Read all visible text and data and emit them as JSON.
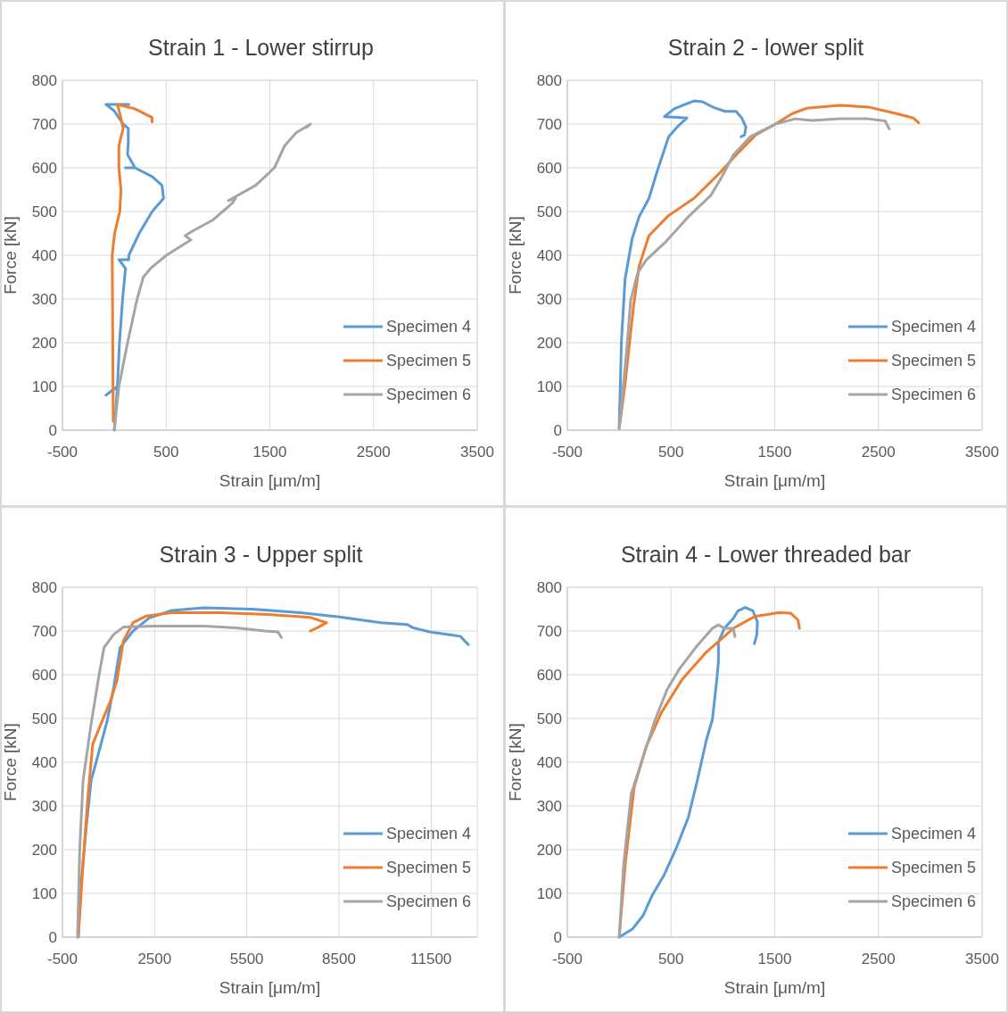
{
  "chart_data": [
    {
      "type": "line",
      "title": "Strain 1 - Lower stirrup",
      "xlabel": "Strain [μm/m]",
      "ylabel": "Force [kN]",
      "xlim": [
        -500,
        3500
      ],
      "xticks": [
        -500,
        500,
        1500,
        2500,
        3500
      ],
      "ylim": [
        0,
        800
      ],
      "yticks": [
        0,
        100,
        200,
        300,
        400,
        500,
        600,
        700,
        800
      ],
      "grid": true,
      "legend": "bottom right",
      "series": [
        {
          "name": "Specimen 4",
          "color": "#5b9bd5",
          "x": [
            0,
            30,
            -80,
            30,
            50,
            80,
            108,
            45,
            140,
            140,
            240,
            365,
            475,
            460,
            365,
            200,
            108,
            200,
            128,
            135,
            135,
            85,
            0,
            -80,
            140
          ],
          "values": [
            0,
            100,
            80,
            100,
            200,
            300,
            370,
            390,
            390,
            400,
            450,
            500,
            530,
            560,
            580,
            600,
            600,
            600,
            630,
            660,
            690,
            700,
            730,
            745,
            745
          ]
        },
        {
          "name": "Specimen 5",
          "color": "#ed7d31",
          "x": [
            -10,
            -20,
            3,
            53,
            64,
            44,
            44,
            86,
            58,
            30,
            197,
            364,
            364
          ],
          "values": [
            20,
            400,
            450,
            500,
            550,
            600,
            650,
            690,
            720,
            745,
            735,
            715,
            705
          ]
        },
        {
          "name": "Specimen 6",
          "color": "#a5a5a5",
          "x": [
            0,
            44,
            128,
            220,
            280,
            350,
            503,
            739,
            683,
            753,
            947,
            1142,
            1169,
            1100,
            1364,
            1544,
            1642,
            1753,
            1892,
            1850
          ],
          "values": [
            0,
            100,
            200,
            300,
            350,
            370,
            400,
            435,
            445,
            455,
            480,
            520,
            530,
            525,
            560,
            600,
            650,
            680,
            700,
            692
          ]
        }
      ]
    },
    {
      "type": "line",
      "title": "Strain 2 - lower split",
      "xlabel": "Strain [μm/m]",
      "ylabel": "Force [kN]",
      "xlim": [
        -500,
        3500
      ],
      "xticks": [
        -500,
        500,
        1500,
        2500,
        3500
      ],
      "ylim": [
        0,
        800
      ],
      "yticks": [
        0,
        100,
        200,
        300,
        400,
        500,
        600,
        700,
        800
      ],
      "grid": true,
      "legend": "bottom right",
      "series": [
        {
          "name": "Specimen 4",
          "color": "#5b9bd5",
          "x": [
            0,
            11,
            22,
            57,
            125,
            192,
            287,
            369,
            477,
            558,
            653,
            436,
            531,
            720,
            802,
            911,
            1019,
            1127,
            1182,
            1222,
            1209,
            1176
          ],
          "values": [
            7,
            106,
            205,
            346,
            438,
            488,
            530,
            594,
            671,
            693,
            714,
            717,
            735,
            753,
            751,
            738,
            729,
            729,
            714,
            693,
            675,
            671
          ]
        },
        {
          "name": "Specimen 5",
          "color": "#ed7d31",
          "x": [
            0,
            57,
            138,
            192,
            287,
            477,
            721,
            965,
            1154,
            1317,
            1507,
            1669,
            1805,
            2130,
            2401,
            2672,
            2835,
            2889
          ],
          "values": [
            4,
            106,
            283,
            375,
            445,
            491,
            530,
            587,
            636,
            675,
            700,
            724,
            736,
            743,
            739,
            724,
            714,
            703
          ]
        },
        {
          "name": "Specimen 6",
          "color": "#a5a5a5",
          "x": [
            0,
            70,
            111,
            179,
            260,
            450,
            667,
            884,
            992,
            1100,
            1263,
            1507,
            1696,
            1859,
            2130,
            2401,
            2564,
            2604
          ],
          "values": [
            4,
            177,
            297,
            360,
            389,
            431,
            488,
            537,
            580,
            629,
            671,
            700,
            712,
            708,
            712,
            712,
            707,
            689
          ]
        }
      ]
    },
    {
      "type": "line",
      "title": "Strain 3 - Upper split",
      "xlabel": "Strain [μm/m]",
      "ylabel": "Force [kN]",
      "xlim": [
        -500,
        13000
      ],
      "xticks": [
        -500,
        2500,
        5500,
        8500,
        11500
      ],
      "ylim": [
        0,
        800
      ],
      "yticks": [
        0,
        100,
        200,
        300,
        400,
        500,
        600,
        700,
        800
      ],
      "grid": true,
      "legend": "bottom right",
      "series": [
        {
          "name": "Specimen 4",
          "color": "#5b9bd5",
          "x": [
            13,
            118,
            275,
            433,
            695,
            958,
            1167,
            1377,
            1797,
            2322,
            3056,
            4105,
            5679,
            7253,
            8513,
            9877,
            10716,
            10926,
            11451,
            12448,
            12710
          ],
          "values": [
            0,
            130,
            252,
            358,
            426,
            495,
            571,
            662,
            700,
            730,
            747,
            753,
            750,
            742,
            732,
            719,
            715,
            707,
            698,
            688,
            669
          ]
        },
        {
          "name": "Specimen 5",
          "color": "#ed7d31",
          "x": [
            13,
            171,
            328,
            485,
            748,
            1063,
            1272,
            1377,
            1482,
            1797,
            2217,
            3056,
            4630,
            6204,
            7568,
            8093,
            7778,
            7568
          ],
          "values": [
            0,
            168,
            320,
            441,
            487,
            540,
            586,
            631,
            677,
            719,
            734,
            742,
            742,
            738,
            731,
            719,
            707,
            700
          ]
        },
        {
          "name": "Specimen 6",
          "color": "#a5a5a5",
          "x": [
            -8,
            65,
            171,
            433,
            695,
            853,
            1167,
            1482,
            2532,
            4105,
            5154,
            6099,
            6519,
            6624
          ],
          "values": [
            0,
            206,
            358,
            487,
            601,
            662,
            692,
            709,
            711,
            711,
            707,
            700,
            698,
            685
          ]
        }
      ]
    },
    {
      "type": "line",
      "title": "Strain 4 - Lower threaded bar",
      "xlabel": "Strain [μm/m]",
      "ylabel": "Force [kN]",
      "xlim": [
        -500,
        3500
      ],
      "xticks": [
        -500,
        500,
        1500,
        2500,
        3500
      ],
      "ylim": [
        0,
        800
      ],
      "yticks": [
        0,
        100,
        200,
        300,
        400,
        500,
        600,
        700,
        800
      ],
      "grid": true,
      "legend": "bottom right",
      "series": [
        {
          "name": "Specimen 4",
          "color": "#5b9bd5",
          "x": [
            0,
            130,
            232,
            319,
            435,
            551,
            667,
            754,
            841,
            899,
            942,
            957,
            957,
            1014,
            1101,
            1145,
            1217,
            1290,
            1333,
            1327,
            1304
          ],
          "values": [
            0,
            19,
            50,
            96,
            143,
            204,
            274,
            359,
            451,
            498,
            590,
            629,
            675,
            706,
            729,
            746,
            754,
            746,
            721,
            691,
            671
          ]
        },
        {
          "name": "Specimen 5",
          "color": "#ed7d31",
          "x": [
            0,
            58,
            145,
            261,
            406,
            609,
            841,
            1101,
            1304,
            1536,
            1652,
            1725,
            1739
          ],
          "values": [
            0,
            166,
            343,
            436,
            513,
            590,
            652,
            706,
            733,
            742,
            741,
            725,
            706
          ]
        },
        {
          "name": "Specimen 6",
          "color": "#a5a5a5",
          "x": [
            0,
            43,
            116,
            232,
            348,
            464,
            580,
            754,
            899,
            957,
            1014,
            1101,
            1116
          ],
          "values": [
            0,
            166,
            328,
            413,
            498,
            567,
            613,
            667,
            706,
            714,
            706,
            706,
            687
          ]
        }
      ]
    }
  ]
}
